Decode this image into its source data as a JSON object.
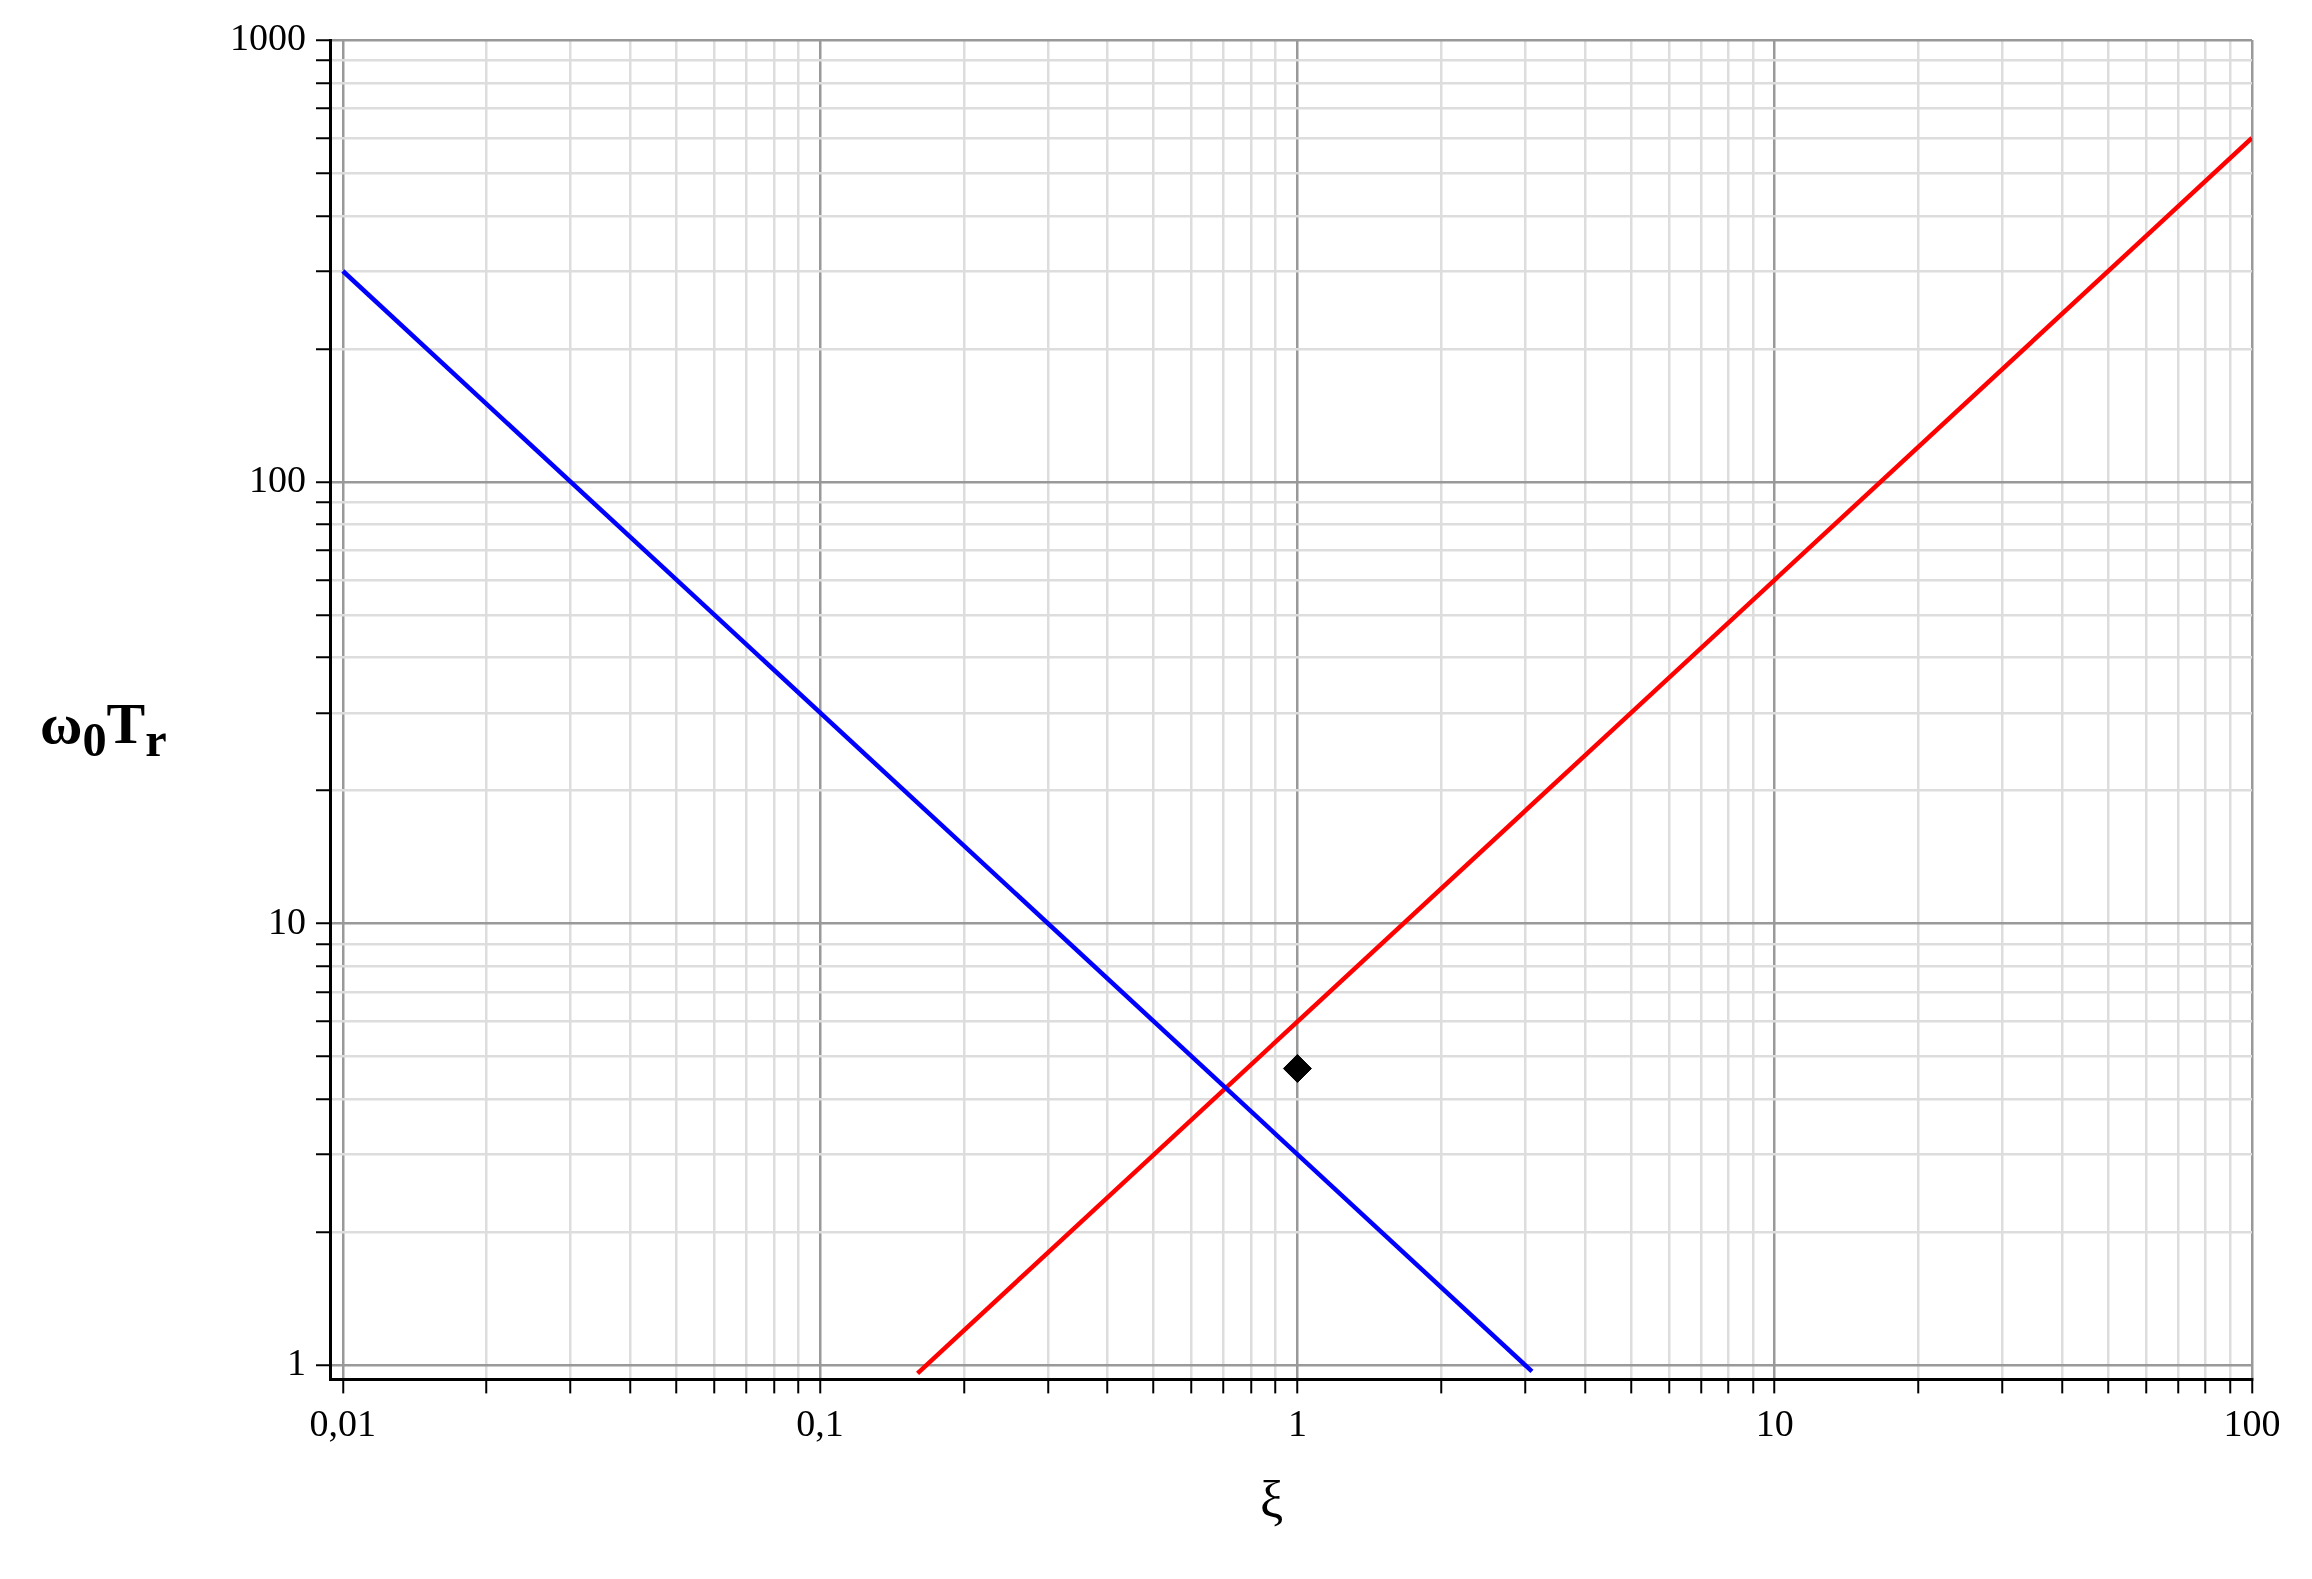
{
  "chart_data": {
    "type": "line",
    "xlabel": "ξ",
    "ylabel": "ω$_{0}$T$_{r}$",
    "log": "xy",
    "grid": true,
    "xlim": [
      0.0094,
      100
    ],
    "ylim": [
      0.93,
      1000
    ],
    "xticks": [
      {
        "value": 0.01,
        "label": "0,01"
      },
      {
        "value": 0.02,
        "label": null
      },
      {
        "value": 0.03,
        "label": null
      },
      {
        "value": 0.04,
        "label": null
      },
      {
        "value": 0.05,
        "label": null
      },
      {
        "value": 0.06,
        "label": null
      },
      {
        "value": 0.07,
        "label": null
      },
      {
        "value": 0.08,
        "label": null
      },
      {
        "value": 0.09,
        "label": null
      },
      {
        "value": 0.1,
        "label": "0,1"
      },
      {
        "value": 0.2,
        "label": null
      },
      {
        "value": 0.3,
        "label": null
      },
      {
        "value": 0.4,
        "label": null
      },
      {
        "value": 0.5,
        "label": null
      },
      {
        "value": 0.6,
        "label": null
      },
      {
        "value": 0.7,
        "label": null
      },
      {
        "value": 0.8,
        "label": null
      },
      {
        "value": 0.9,
        "label": null
      },
      1,
      {
        "value": 2,
        "label": null
      },
      {
        "value": 3,
        "label": null
      },
      {
        "value": 4,
        "label": null
      },
      {
        "value": 5,
        "label": null
      },
      {
        "value": 6,
        "label": null
      },
      {
        "value": 7,
        "label": null
      },
      {
        "value": 8,
        "label": null
      },
      {
        "value": 9,
        "label": null
      },
      10,
      {
        "value": 20,
        "label": null
      },
      {
        "value": 30,
        "label": null
      },
      {
        "value": 40,
        "label": null
      },
      {
        "value": 50,
        "label": null
      },
      {
        "value": 60,
        "label": null
      },
      {
        "value": 70,
        "label": null
      },
      {
        "value": 80,
        "label": null
      },
      {
        "value": 90,
        "label": null
      },
      100
    ],
    "yticks": [
      1,
      {
        "value": 2,
        "label": null
      },
      {
        "value": 3,
        "label": null
      },
      {
        "value": 4,
        "label": null
      },
      {
        "value": 5,
        "label": null
      },
      {
        "value": 6,
        "label": null
      },
      {
        "value": 7,
        "label": null
      },
      {
        "value": 8,
        "label": null
      },
      {
        "value": 9,
        "label": null
      },
      10,
      {
        "value": 20,
        "label": null
      },
      {
        "value": 30,
        "label": null
      },
      {
        "value": 40,
        "label": null
      },
      {
        "value": 50,
        "label": null
      },
      {
        "value": 60,
        "label": null
      },
      {
        "value": 70,
        "label": null
      },
      {
        "value": 80,
        "label": null
      },
      {
        "value": 90,
        "label": null
      },
      100,
      {
        "value": 200,
        "label": null
      },
      {
        "value": 300,
        "label": null
      },
      {
        "value": 400,
        "label": null
      },
      {
        "value": 500,
        "label": null
      },
      {
        "value": 600,
        "label": null
      },
      {
        "value": 700,
        "label": null
      },
      {
        "value": 800,
        "label": null
      },
      {
        "value": 900,
        "label": null
      },
      1000
    ],
    "series": [
      {
        "color": "#0000ff",
        "x": [
          0.01,
          3.1
        ],
        "values": [
          300,
          0.97
        ]
      },
      {
        "color": "#ff0000",
        "x": [
          0.16,
          100
        ],
        "values": [
          0.96,
          600
        ]
      },
      {
        "type": "scatter",
        "color": "#000000",
        "marker": "diamond",
        "x": [
          1
        ],
        "values": [
          4.7
        ]
      }
    ]
  }
}
